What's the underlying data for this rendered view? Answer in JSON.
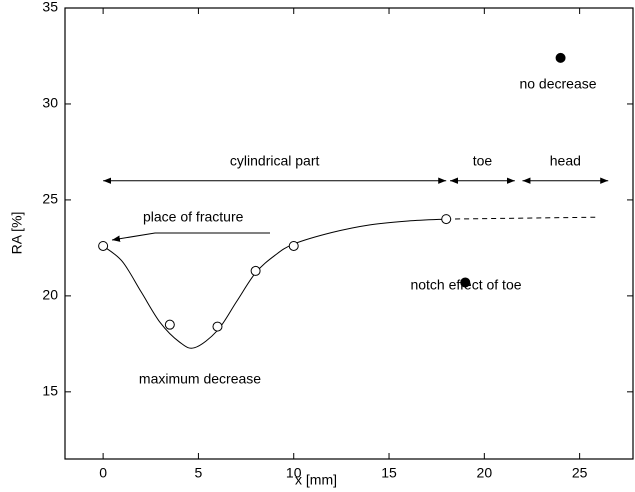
{
  "chart_data": {
    "type": "line",
    "xlabel": "x  [mm]",
    "ylabel": "RA  [%]",
    "xlim": [
      -2,
      27.8
    ],
    "ylim": [
      11.5,
      35
    ],
    "xticks": [
      0,
      5,
      10,
      15,
      20,
      25
    ],
    "yticks": [
      15,
      20,
      25,
      30,
      35
    ],
    "color": "#000000",
    "series": [
      {
        "style": "curve",
        "x": [
          0,
          1,
          2,
          3,
          4,
          4.8,
          6,
          7,
          8,
          9,
          10,
          12,
          14,
          16,
          18
        ],
        "values": [
          22.6,
          21.8,
          20.2,
          18.6,
          17.6,
          17.3,
          18.2,
          19.7,
          21.2,
          22.1,
          22.7,
          23.3,
          23.7,
          23.9,
          24.0
        ]
      },
      {
        "style": "dashed",
        "x": [
          18,
          26
        ],
        "values": [
          24.0,
          24.1
        ]
      },
      {
        "marker": "open",
        "x": [
          0,
          3.5,
          6,
          8,
          10,
          18
        ],
        "values": [
          22.6,
          18.5,
          18.4,
          21.3,
          22.6,
          24.0
        ]
      },
      {
        "marker": "filled",
        "x": [
          19,
          24
        ],
        "values": [
          20.7,
          32.4
        ]
      }
    ],
    "regions": [
      {
        "label": "cylindrical part",
        "from": 0,
        "to": 18,
        "y": 26
      },
      {
        "label": "toe",
        "from": 18.2,
        "to": 21.6,
        "y": 26
      },
      {
        "label": "head",
        "from": 22,
        "to": 26.5,
        "y": 26
      }
    ],
    "annotations": [
      "place of fracture",
      "maximum decrease",
      "notch effect of toe",
      "no decrease"
    ]
  }
}
